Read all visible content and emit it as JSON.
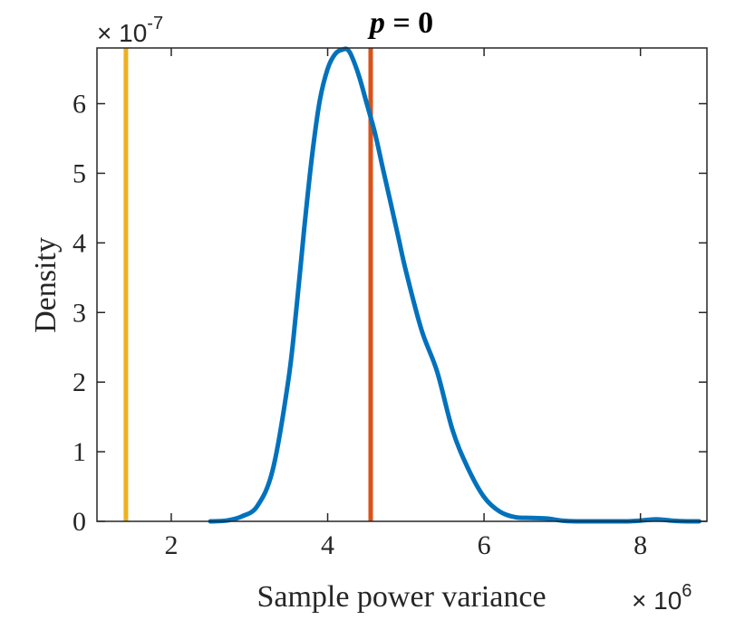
{
  "chart_data": {
    "type": "line",
    "title_var": "p",
    "title_rest": " = 0",
    "xlabel": "Sample power variance",
    "ylabel": "Density",
    "x_multiplier_base": "× 10",
    "x_multiplier_exp": "6",
    "y_multiplier_base": "× 10",
    "y_multiplier_exp": "-7",
    "xlim": [
      1.05,
      8.85
    ],
    "ylim": [
      0,
      6.8
    ],
    "xticks": [
      2,
      4,
      6,
      8
    ],
    "xtick_labels": [
      "2",
      "4",
      "6",
      "8"
    ],
    "yticks": [
      0,
      1,
      2,
      3,
      4,
      5,
      6
    ],
    "ytick_labels": [
      "0",
      "1",
      "2",
      "3",
      "4",
      "5",
      "6"
    ],
    "series": [
      {
        "color": "#0072BD",
        "x": [
          2.5,
          2.7,
          2.9,
          3.1,
          3.3,
          3.5,
          3.6,
          3.7,
          3.8,
          3.9,
          4.0,
          4.1,
          4.2,
          4.25,
          4.3,
          4.4,
          4.5,
          4.6,
          4.7,
          4.8,
          4.9,
          5.0,
          5.2,
          5.4,
          5.6,
          5.8,
          6.0,
          6.2,
          6.4,
          6.6,
          6.8,
          7.0,
          7.2,
          7.4,
          7.6,
          7.8,
          8.0,
          8.2,
          8.4,
          8.6,
          8.75
        ],
        "y": [
          0.0,
          0.01,
          0.07,
          0.22,
          0.75,
          2.05,
          3.05,
          4.2,
          5.25,
          6.05,
          6.5,
          6.72,
          6.78,
          6.78,
          6.7,
          6.4,
          6.0,
          5.6,
          5.1,
          4.6,
          4.1,
          3.6,
          2.75,
          2.15,
          1.3,
          0.75,
          0.35,
          0.14,
          0.06,
          0.05,
          0.04,
          0.01,
          0.0,
          0.0,
          0.0,
          0.0,
          0.01,
          0.03,
          0.01,
          0.0,
          0.0
        ]
      }
    ],
    "vlines": [
      {
        "x": 1.42,
        "color": "#EDB120"
      },
      {
        "x": 4.55,
        "color": "#D95319"
      }
    ],
    "grid": false,
    "box": true
  }
}
